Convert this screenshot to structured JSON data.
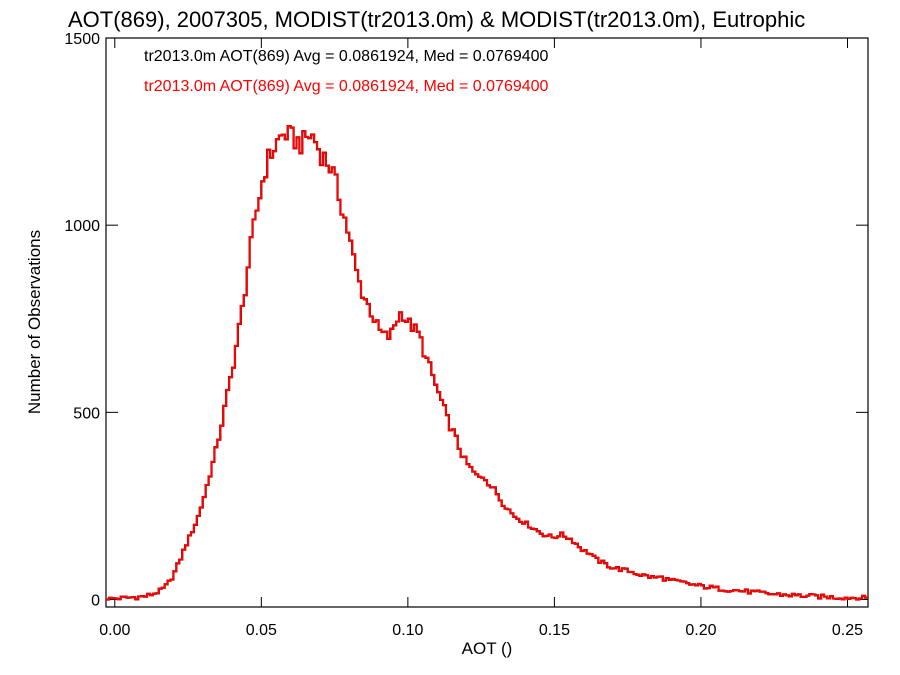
{
  "chart_data": {
    "type": "histogram",
    "title": "AOT(869), 2007305, MODIST(tr2013.0m) & MODIST(tr2013.0m), Eutrophic",
    "xlabel": "AOT ()",
    "ylabel": "Number of Observations",
    "xlim": [
      -0.003,
      0.257
    ],
    "ylim": [
      -20,
      1500
    ],
    "x_ticks": [
      0.0,
      0.05,
      0.1,
      0.15,
      0.2,
      0.25
    ],
    "x_tick_labels": [
      "0.00",
      "0.05",
      "0.10",
      "0.15",
      "0.20",
      "0.25"
    ],
    "y_ticks": [
      0,
      500,
      1000,
      1500
    ],
    "y_tick_labels": [
      "0",
      "500",
      "1000",
      "1500"
    ],
    "grid": false,
    "legend_placement": "top-left",
    "bin_width": 0.001,
    "series": [
      {
        "name": "tr2013.0m AOT(869) Avg = 0.0861924, Med = 0.0769400",
        "color": "#000000",
        "points": [
          [
            -0.003,
            0
          ],
          [
            0.0,
            3
          ],
          [
            0.005,
            5
          ],
          [
            0.01,
            8
          ],
          [
            0.012,
            12
          ],
          [
            0.014,
            18
          ],
          [
            0.016,
            25
          ],
          [
            0.018,
            40
          ],
          [
            0.02,
            65
          ],
          [
            0.022,
            100
          ],
          [
            0.024,
            140
          ],
          [
            0.026,
            175
          ],
          [
            0.028,
            210
          ],
          [
            0.03,
            260
          ],
          [
            0.032,
            320
          ],
          [
            0.034,
            380
          ],
          [
            0.036,
            450
          ],
          [
            0.038,
            530
          ],
          [
            0.04,
            610
          ],
          [
            0.042,
            700
          ],
          [
            0.044,
            800
          ],
          [
            0.046,
            920
          ],
          [
            0.048,
            1020
          ],
          [
            0.05,
            1100
          ],
          [
            0.052,
            1170
          ],
          [
            0.054,
            1200
          ],
          [
            0.056,
            1230
          ],
          [
            0.058,
            1245
          ],
          [
            0.06,
            1235
          ],
          [
            0.062,
            1225
          ],
          [
            0.064,
            1215
          ],
          [
            0.066,
            1240
          ],
          [
            0.068,
            1235
          ],
          [
            0.07,
            1195
          ],
          [
            0.072,
            1175
          ],
          [
            0.074,
            1150
          ],
          [
            0.076,
            1095
          ],
          [
            0.078,
            1035
          ],
          [
            0.08,
            970
          ],
          [
            0.082,
            890
          ],
          [
            0.084,
            830
          ],
          [
            0.086,
            795
          ],
          [
            0.088,
            760
          ],
          [
            0.09,
            720
          ],
          [
            0.092,
            705
          ],
          [
            0.094,
            700
          ],
          [
            0.096,
            745
          ],
          [
            0.098,
            770
          ],
          [
            0.1,
            740
          ],
          [
            0.102,
            725
          ],
          [
            0.104,
            705
          ],
          [
            0.106,
            650
          ],
          [
            0.108,
            610
          ],
          [
            0.11,
            560
          ],
          [
            0.112,
            520
          ],
          [
            0.114,
            470
          ],
          [
            0.116,
            440
          ],
          [
            0.118,
            395
          ],
          [
            0.12,
            365
          ],
          [
            0.122,
            345
          ],
          [
            0.124,
            325
          ],
          [
            0.126,
            330
          ],
          [
            0.128,
            305
          ],
          [
            0.13,
            290
          ],
          [
            0.132,
            260
          ],
          [
            0.134,
            245
          ],
          [
            0.136,
            225
          ],
          [
            0.138,
            215
          ],
          [
            0.14,
            205
          ],
          [
            0.142,
            195
          ],
          [
            0.144,
            185
          ],
          [
            0.146,
            175
          ],
          [
            0.148,
            170
          ],
          [
            0.15,
            165
          ],
          [
            0.152,
            175
          ],
          [
            0.154,
            168
          ],
          [
            0.156,
            160
          ],
          [
            0.158,
            145
          ],
          [
            0.16,
            130
          ],
          [
            0.162,
            125
          ],
          [
            0.164,
            108
          ],
          [
            0.166,
            100
          ],
          [
            0.168,
            92
          ],
          [
            0.17,
            85
          ],
          [
            0.172,
            82
          ],
          [
            0.174,
            78
          ],
          [
            0.176,
            75
          ],
          [
            0.178,
            70
          ],
          [
            0.18,
            65
          ],
          [
            0.182,
            62
          ],
          [
            0.184,
            58
          ],
          [
            0.186,
            60
          ],
          [
            0.188,
            55
          ],
          [
            0.19,
            50
          ],
          [
            0.192,
            48
          ],
          [
            0.194,
            45
          ],
          [
            0.196,
            42
          ],
          [
            0.198,
            38
          ],
          [
            0.2,
            36
          ],
          [
            0.205,
            30
          ],
          [
            0.21,
            26
          ],
          [
            0.215,
            22
          ],
          [
            0.22,
            18
          ],
          [
            0.225,
            14
          ],
          [
            0.23,
            12
          ],
          [
            0.235,
            10
          ],
          [
            0.24,
            8
          ],
          [
            0.245,
            6
          ],
          [
            0.25,
            5
          ],
          [
            0.257,
            4
          ]
        ]
      },
      {
        "name": "tr2013.0m AOT(869) Avg = 0.0861924, Med = 0.0769400",
        "color": "#ff0000",
        "points": [
          [
            -0.003,
            0
          ],
          [
            0.0,
            3
          ],
          [
            0.005,
            5
          ],
          [
            0.01,
            8
          ],
          [
            0.012,
            12
          ],
          [
            0.014,
            18
          ],
          [
            0.016,
            25
          ],
          [
            0.018,
            40
          ],
          [
            0.02,
            65
          ],
          [
            0.022,
            100
          ],
          [
            0.024,
            140
          ],
          [
            0.026,
            175
          ],
          [
            0.028,
            210
          ],
          [
            0.03,
            260
          ],
          [
            0.032,
            320
          ],
          [
            0.034,
            380
          ],
          [
            0.036,
            450
          ],
          [
            0.038,
            530
          ],
          [
            0.04,
            610
          ],
          [
            0.042,
            700
          ],
          [
            0.044,
            800
          ],
          [
            0.046,
            920
          ],
          [
            0.048,
            1020
          ],
          [
            0.05,
            1100
          ],
          [
            0.052,
            1170
          ],
          [
            0.054,
            1200
          ],
          [
            0.056,
            1230
          ],
          [
            0.058,
            1245
          ],
          [
            0.06,
            1235
          ],
          [
            0.062,
            1225
          ],
          [
            0.064,
            1215
          ],
          [
            0.066,
            1240
          ],
          [
            0.068,
            1235
          ],
          [
            0.07,
            1195
          ],
          [
            0.072,
            1175
          ],
          [
            0.074,
            1150
          ],
          [
            0.076,
            1095
          ],
          [
            0.078,
            1035
          ],
          [
            0.08,
            970
          ],
          [
            0.082,
            890
          ],
          [
            0.084,
            830
          ],
          [
            0.086,
            795
          ],
          [
            0.088,
            760
          ],
          [
            0.09,
            720
          ],
          [
            0.092,
            705
          ],
          [
            0.094,
            700
          ],
          [
            0.096,
            745
          ],
          [
            0.098,
            770
          ],
          [
            0.1,
            740
          ],
          [
            0.102,
            725
          ],
          [
            0.104,
            705
          ],
          [
            0.106,
            650
          ],
          [
            0.108,
            610
          ],
          [
            0.11,
            560
          ],
          [
            0.112,
            520
          ],
          [
            0.114,
            470
          ],
          [
            0.116,
            440
          ],
          [
            0.118,
            395
          ],
          [
            0.12,
            365
          ],
          [
            0.122,
            345
          ],
          [
            0.124,
            325
          ],
          [
            0.126,
            330
          ],
          [
            0.128,
            305
          ],
          [
            0.13,
            290
          ],
          [
            0.132,
            260
          ],
          [
            0.134,
            245
          ],
          [
            0.136,
            225
          ],
          [
            0.138,
            215
          ],
          [
            0.14,
            205
          ],
          [
            0.142,
            195
          ],
          [
            0.144,
            185
          ],
          [
            0.146,
            175
          ],
          [
            0.148,
            170
          ],
          [
            0.15,
            165
          ],
          [
            0.152,
            175
          ],
          [
            0.154,
            168
          ],
          [
            0.156,
            160
          ],
          [
            0.158,
            145
          ],
          [
            0.16,
            130
          ],
          [
            0.162,
            125
          ],
          [
            0.164,
            108
          ],
          [
            0.166,
            100
          ],
          [
            0.168,
            92
          ],
          [
            0.17,
            85
          ],
          [
            0.172,
            82
          ],
          [
            0.174,
            78
          ],
          [
            0.176,
            75
          ],
          [
            0.178,
            70
          ],
          [
            0.18,
            65
          ],
          [
            0.182,
            62
          ],
          [
            0.184,
            58
          ],
          [
            0.186,
            60
          ],
          [
            0.188,
            55
          ],
          [
            0.19,
            50
          ],
          [
            0.192,
            48
          ],
          [
            0.194,
            45
          ],
          [
            0.196,
            42
          ],
          [
            0.198,
            38
          ],
          [
            0.2,
            36
          ],
          [
            0.205,
            30
          ],
          [
            0.21,
            26
          ],
          [
            0.215,
            22
          ],
          [
            0.22,
            18
          ],
          [
            0.225,
            14
          ],
          [
            0.23,
            12
          ],
          [
            0.235,
            10
          ],
          [
            0.24,
            8
          ],
          [
            0.245,
            6
          ],
          [
            0.25,
            5
          ],
          [
            0.257,
            4
          ]
        ]
      }
    ]
  }
}
